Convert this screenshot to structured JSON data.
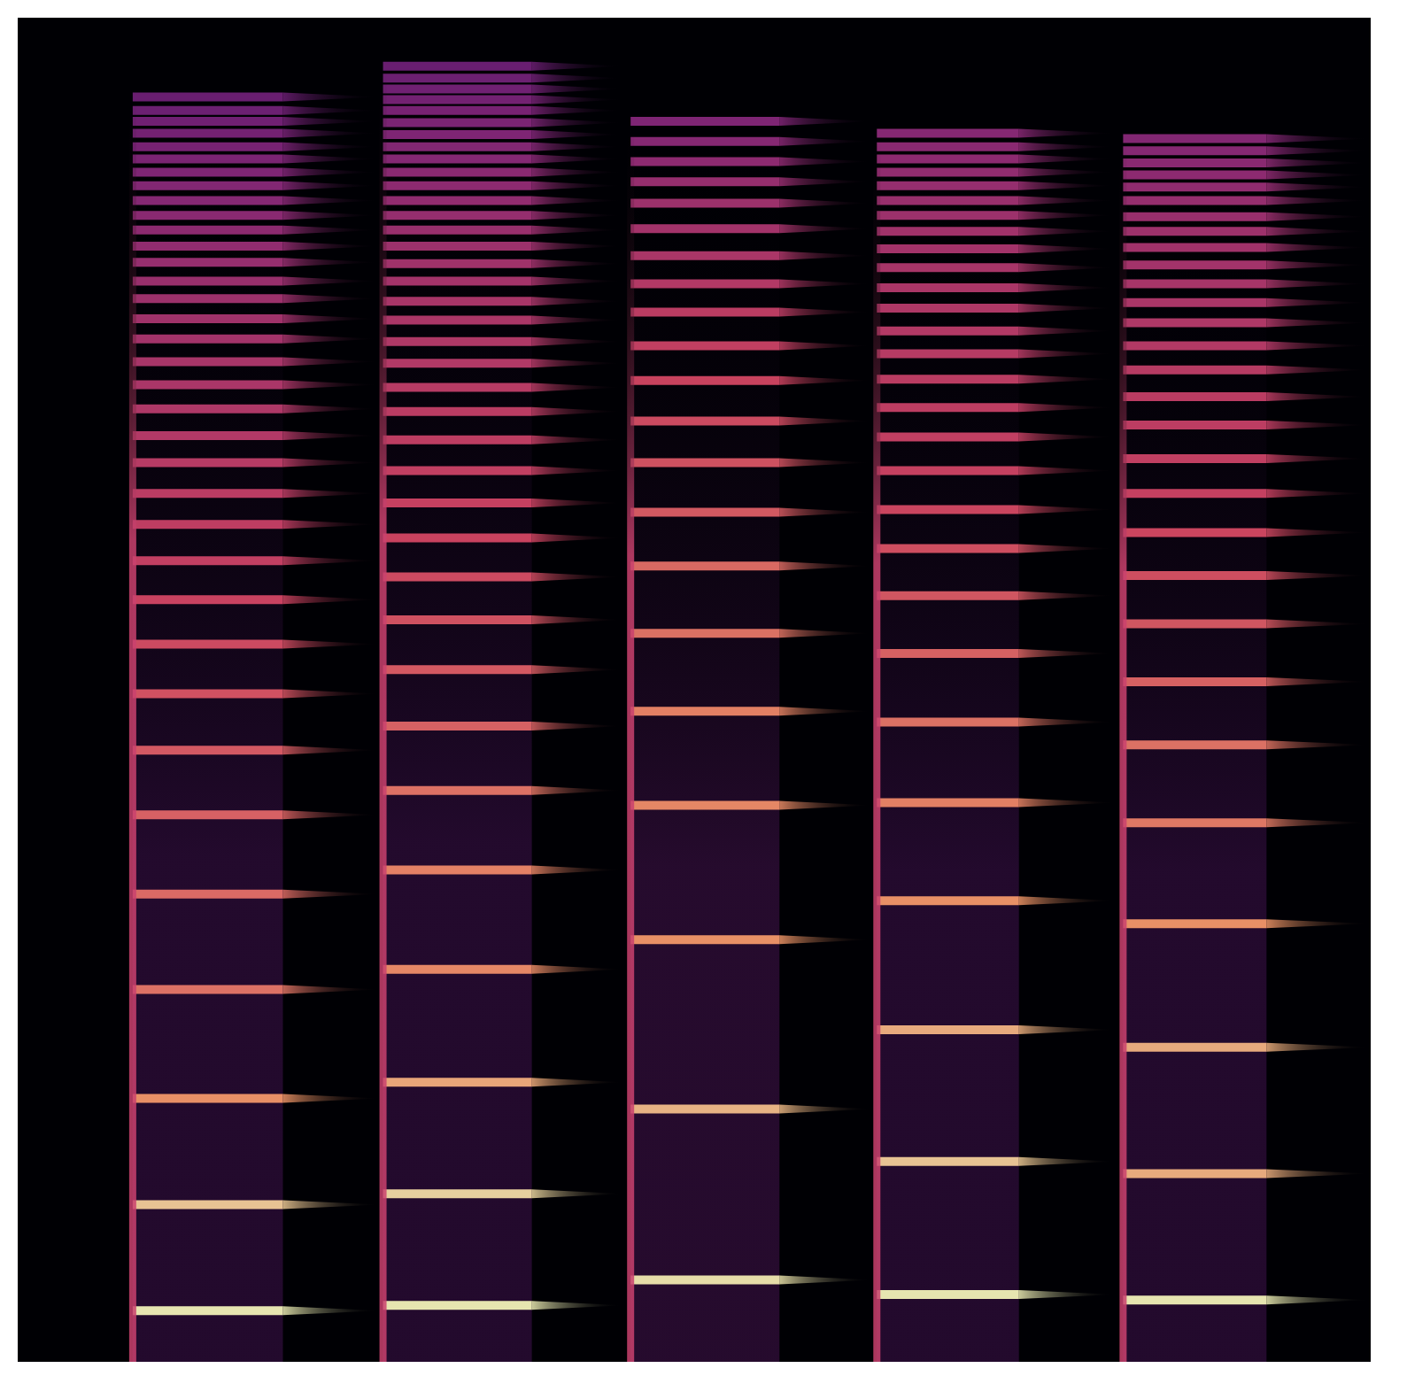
{
  "chart_data": {
    "type": "spectrogram",
    "xlim": [
      0,
      100
    ],
    "ylim": [
      0,
      100
    ],
    "zlim": [
      0,
      100
    ],
    "tick_labels": false,
    "grid": false,
    "notes": [
      {
        "start": 8.5,
        "sustain_end": 19.6,
        "end": 26.8,
        "onset_level": 55,
        "noise_level": 30,
        "harmonics": [
          3.8,
          11.7,
          19.6,
          27.7,
          34.8,
          40.7,
          45.5,
          49.7,
          53.4,
          56.7,
          59.6,
          62.3,
          64.6,
          66.9,
          68.9,
          70.9,
          72.7,
          74.4,
          76.1,
          77.6,
          79.1,
          80.4,
          81.8,
          83.0,
          84.2,
          85.3,
          86.4,
          87.5,
          88.5,
          89.5,
          90.4,
          91.4,
          92.3,
          93.1,
          94.1
        ],
        "levels": [
          100,
          92,
          80,
          72,
          70,
          68,
          66,
          64,
          62,
          60,
          58,
          57,
          56,
          55,
          54,
          53,
          52,
          51,
          50,
          49,
          48,
          47,
          46,
          45,
          44,
          43,
          42,
          41,
          40,
          39,
          38,
          37,
          36,
          35,
          34
        ]
      },
      {
        "start": 27.0,
        "sustain_end": 38.0,
        "end": 44.8,
        "onset_level": 55,
        "noise_level": 30,
        "harmonics": [
          4.2,
          12.5,
          20.8,
          29.2,
          36.6,
          42.5,
          47.3,
          51.5,
          55.2,
          58.4,
          61.3,
          63.9,
          66.3,
          68.6,
          70.7,
          72.5,
          74.3,
          75.9,
          77.5,
          78.9,
          80.4,
          81.7,
          83.0,
          84.2,
          85.3,
          86.4,
          87.5,
          88.5,
          89.5,
          90.4,
          91.3,
          92.2,
          93.1,
          93.9,
          94.7,
          95.5,
          96.4
        ],
        "levels": [
          100,
          95,
          85,
          78,
          76,
          72,
          68,
          66,
          64,
          62,
          60,
          59,
          58,
          57,
          56,
          55,
          54,
          53,
          52,
          51,
          50,
          49,
          48,
          47,
          46,
          45,
          44,
          43,
          42,
          41,
          40,
          39,
          38,
          37,
          36,
          35,
          34
        ]
      },
      {
        "start": 45.3,
        "sustain_end": 56.3,
        "end": 63.2,
        "onset_level": 55,
        "noise_level": 32,
        "harmonics": [
          6.1,
          18.8,
          31.4,
          41.4,
          48.4,
          54.2,
          59.2,
          63.2,
          66.9,
          70.0,
          73.0,
          75.6,
          78.1,
          80.2,
          82.3,
          84.3,
          86.2,
          87.8,
          89.3,
          90.8,
          92.3
        ],
        "levels": [
          98,
          88,
          80,
          78,
          76,
          72,
          70,
          66,
          64,
          62,
          60,
          58,
          56,
          54,
          52,
          50,
          48,
          46,
          44,
          42,
          40
        ]
      },
      {
        "start": 63.5,
        "sustain_end": 74.0,
        "end": 81.2,
        "onset_level": 55,
        "noise_level": 30,
        "harmonics": [
          5.0,
          14.9,
          24.7,
          34.3,
          41.6,
          47.6,
          52.7,
          57.0,
          60.5,
          63.4,
          66.3,
          68.8,
          71.0,
          73.1,
          75.0,
          76.7,
          78.4,
          79.9,
          81.4,
          82.8,
          84.1,
          85.3,
          86.4,
          87.5,
          88.5,
          89.5,
          90.4,
          91.4
        ],
        "levels": [
          100,
          92,
          86,
          80,
          76,
          72,
          68,
          65,
          63,
          61,
          59,
          58,
          57,
          56,
          55,
          54,
          53,
          52,
          51,
          50,
          49,
          48,
          47,
          46,
          45,
          44,
          43,
          42
        ]
      },
      {
        "start": 81.7,
        "sustain_end": 92.3,
        "end": 100,
        "onset_level": 55,
        "noise_level": 30,
        "harmonics": [
          4.6,
          14.0,
          23.4,
          32.6,
          40.1,
          45.9,
          50.6,
          54.9,
          58.5,
          61.7,
          64.6,
          67.2,
          69.7,
          71.8,
          73.8,
          75.6,
          77.3,
          78.8,
          80.2,
          81.6,
          82.9,
          84.1,
          85.2,
          86.4,
          87.4,
          88.3,
          89.2,
          90.1,
          91.0
        ],
        "levels": [
          100,
          86,
          86,
          80,
          74,
          72,
          68,
          65,
          63,
          61,
          59,
          58,
          57,
          56,
          55,
          54,
          53,
          52,
          51,
          50,
          49,
          48,
          47,
          46,
          45,
          44,
          43,
          42,
          41
        ]
      }
    ]
  }
}
